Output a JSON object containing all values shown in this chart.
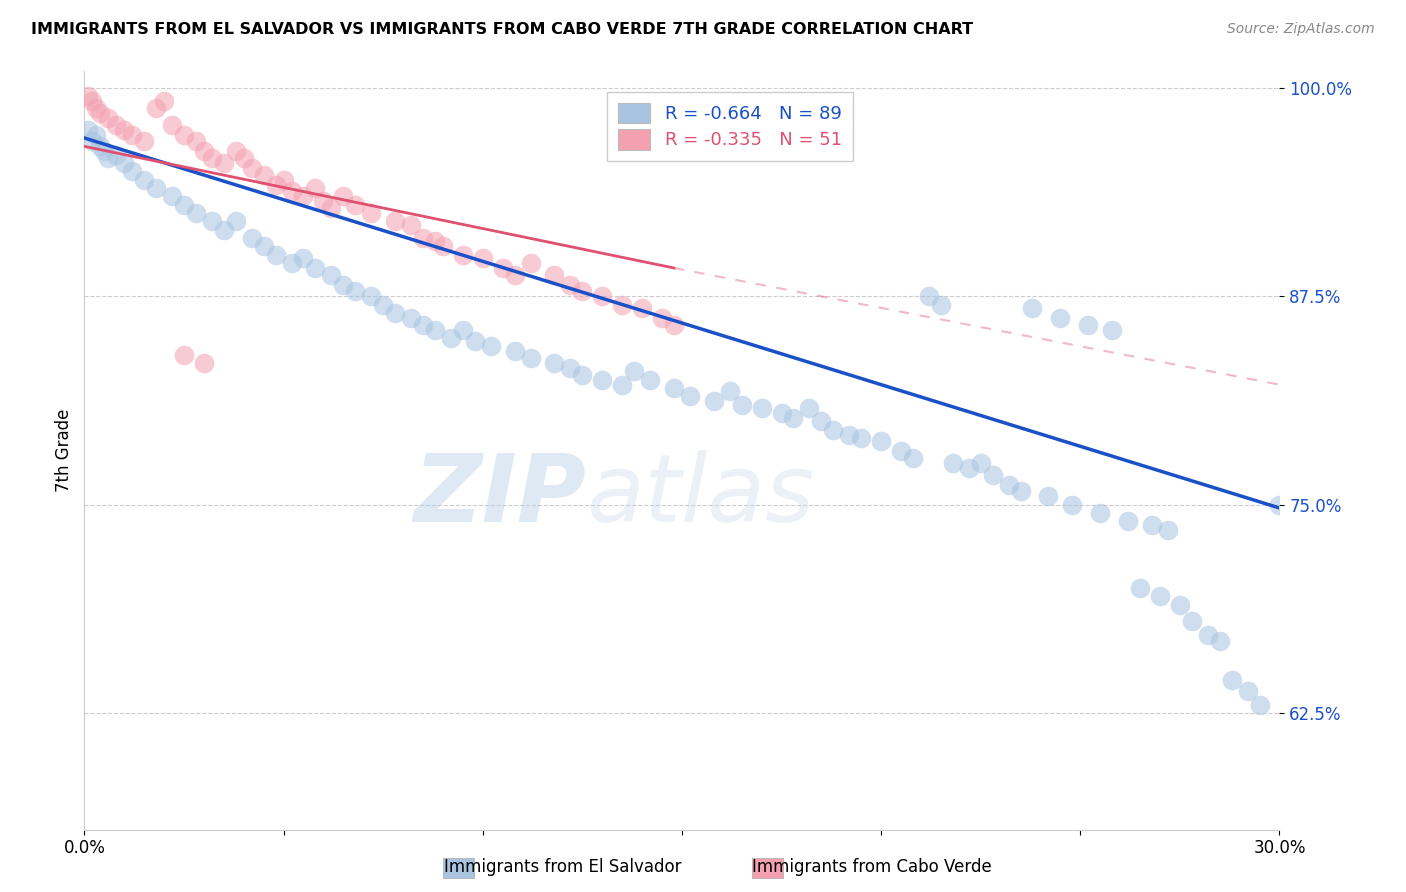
{
  "title": "IMMIGRANTS FROM EL SALVADOR VS IMMIGRANTS FROM CABO VERDE 7TH GRADE CORRELATION CHART",
  "source": "Source: ZipAtlas.com",
  "xlabel_blue": "Immigrants from El Salvador",
  "xlabel_pink": "Immigrants from Cabo Verde",
  "ylabel": "7th Grade",
  "watermark_zip": "ZIP",
  "watermark_atlas": "atlas",
  "xmin": 0.0,
  "xmax": 0.3,
  "ymin": 0.555,
  "ymax": 1.01,
  "yticks": [
    1.0,
    0.875,
    0.75,
    0.625
  ],
  "ytick_labels": [
    "100.0%",
    "87.5%",
    "75.0%",
    "62.5%"
  ],
  "xticks": [
    0.0,
    0.05,
    0.1,
    0.15,
    0.2,
    0.25,
    0.3
  ],
  "xtick_labels": [
    "0.0%",
    "",
    "",
    "",
    "",
    "",
    "30.0%"
  ],
  "R_blue": -0.664,
  "N_blue": 89,
  "R_pink": -0.335,
  "N_pink": 51,
  "blue_color": "#a8c4e0",
  "pink_color": "#f4a0b0",
  "blue_line_color": "#1a50c8",
  "pink_line_color": "#e05070",
  "blue_scatter": [
    [
      0.001,
      0.975
    ],
    [
      0.002,
      0.968
    ],
    [
      0.003,
      0.972
    ],
    [
      0.004,
      0.965
    ],
    [
      0.005,
      0.962
    ],
    [
      0.006,
      0.958
    ],
    [
      0.008,
      0.96
    ],
    [
      0.01,
      0.955
    ],
    [
      0.012,
      0.95
    ],
    [
      0.015,
      0.945
    ],
    [
      0.018,
      0.94
    ],
    [
      0.022,
      0.935
    ],
    [
      0.025,
      0.93
    ],
    [
      0.028,
      0.925
    ],
    [
      0.032,
      0.92
    ],
    [
      0.035,
      0.915
    ],
    [
      0.038,
      0.92
    ],
    [
      0.042,
      0.91
    ],
    [
      0.045,
      0.905
    ],
    [
      0.048,
      0.9
    ],
    [
      0.052,
      0.895
    ],
    [
      0.055,
      0.898
    ],
    [
      0.058,
      0.892
    ],
    [
      0.062,
      0.888
    ],
    [
      0.065,
      0.882
    ],
    [
      0.068,
      0.878
    ],
    [
      0.072,
      0.875
    ],
    [
      0.075,
      0.87
    ],
    [
      0.078,
      0.865
    ],
    [
      0.082,
      0.862
    ],
    [
      0.085,
      0.858
    ],
    [
      0.088,
      0.855
    ],
    [
      0.092,
      0.85
    ],
    [
      0.095,
      0.855
    ],
    [
      0.098,
      0.848
    ],
    [
      0.102,
      0.845
    ],
    [
      0.108,
      0.842
    ],
    [
      0.112,
      0.838
    ],
    [
      0.118,
      0.835
    ],
    [
      0.122,
      0.832
    ],
    [
      0.125,
      0.828
    ],
    [
      0.13,
      0.825
    ],
    [
      0.135,
      0.822
    ],
    [
      0.138,
      0.83
    ],
    [
      0.142,
      0.825
    ],
    [
      0.148,
      0.82
    ],
    [
      0.152,
      0.815
    ],
    [
      0.158,
      0.812
    ],
    [
      0.162,
      0.818
    ],
    [
      0.165,
      0.81
    ],
    [
      0.17,
      0.808
    ],
    [
      0.175,
      0.805
    ],
    [
      0.178,
      0.802
    ],
    [
      0.182,
      0.808
    ],
    [
      0.185,
      0.8
    ],
    [
      0.188,
      0.795
    ],
    [
      0.192,
      0.792
    ],
    [
      0.195,
      0.79
    ],
    [
      0.2,
      0.788
    ],
    [
      0.205,
      0.782
    ],
    [
      0.208,
      0.778
    ],
    [
      0.212,
      0.875
    ],
    [
      0.215,
      0.87
    ],
    [
      0.218,
      0.775
    ],
    [
      0.222,
      0.772
    ],
    [
      0.225,
      0.775
    ],
    [
      0.228,
      0.768
    ],
    [
      0.232,
      0.762
    ],
    [
      0.235,
      0.758
    ],
    [
      0.242,
      0.755
    ],
    [
      0.248,
      0.75
    ],
    [
      0.255,
      0.745
    ],
    [
      0.262,
      0.74
    ],
    [
      0.268,
      0.738
    ],
    [
      0.272,
      0.735
    ],
    [
      0.238,
      0.868
    ],
    [
      0.245,
      0.862
    ],
    [
      0.252,
      0.858
    ],
    [
      0.258,
      0.855
    ],
    [
      0.278,
      0.68
    ],
    [
      0.282,
      0.672
    ],
    [
      0.285,
      0.668
    ],
    [
      0.288,
      0.645
    ],
    [
      0.292,
      0.638
    ],
    [
      0.295,
      0.63
    ],
    [
      0.3,
      0.75
    ],
    [
      0.265,
      0.7
    ],
    [
      0.27,
      0.695
    ],
    [
      0.275,
      0.69
    ]
  ],
  "pink_scatter": [
    [
      0.001,
      0.995
    ],
    [
      0.002,
      0.992
    ],
    [
      0.003,
      0.988
    ],
    [
      0.004,
      0.985
    ],
    [
      0.006,
      0.982
    ],
    [
      0.008,
      0.978
    ],
    [
      0.01,
      0.975
    ],
    [
      0.012,
      0.972
    ],
    [
      0.015,
      0.968
    ],
    [
      0.018,
      0.988
    ],
    [
      0.02,
      0.992
    ],
    [
      0.022,
      0.978
    ],
    [
      0.025,
      0.972
    ],
    [
      0.028,
      0.968
    ],
    [
      0.03,
      0.962
    ],
    [
      0.032,
      0.958
    ],
    [
      0.035,
      0.955
    ],
    [
      0.038,
      0.962
    ],
    [
      0.04,
      0.958
    ],
    [
      0.042,
      0.952
    ],
    [
      0.045,
      0.948
    ],
    [
      0.048,
      0.942
    ],
    [
      0.05,
      0.945
    ],
    [
      0.052,
      0.938
    ],
    [
      0.055,
      0.935
    ],
    [
      0.058,
      0.94
    ],
    [
      0.06,
      0.932
    ],
    [
      0.062,
      0.928
    ],
    [
      0.065,
      0.935
    ],
    [
      0.068,
      0.93
    ],
    [
      0.072,
      0.925
    ],
    [
      0.078,
      0.92
    ],
    [
      0.082,
      0.918
    ],
    [
      0.085,
      0.91
    ],
    [
      0.088,
      0.908
    ],
    [
      0.09,
      0.905
    ],
    [
      0.095,
      0.9
    ],
    [
      0.1,
      0.898
    ],
    [
      0.105,
      0.892
    ],
    [
      0.108,
      0.888
    ],
    [
      0.112,
      0.895
    ],
    [
      0.118,
      0.888
    ],
    [
      0.122,
      0.882
    ],
    [
      0.125,
      0.878
    ],
    [
      0.13,
      0.875
    ],
    [
      0.135,
      0.87
    ],
    [
      0.14,
      0.868
    ],
    [
      0.145,
      0.862
    ],
    [
      0.025,
      0.84
    ],
    [
      0.03,
      0.835
    ],
    [
      0.148,
      0.858
    ]
  ],
  "blue_line_x": [
    0.0,
    0.3
  ],
  "blue_line_y": [
    0.97,
    0.748
  ],
  "pink_line_x": [
    0.0,
    0.148
  ],
  "pink_line_y": [
    0.965,
    0.892
  ],
  "dashed_line_x": [
    0.148,
    0.3
  ],
  "dashed_line_y": [
    0.892,
    0.822
  ]
}
